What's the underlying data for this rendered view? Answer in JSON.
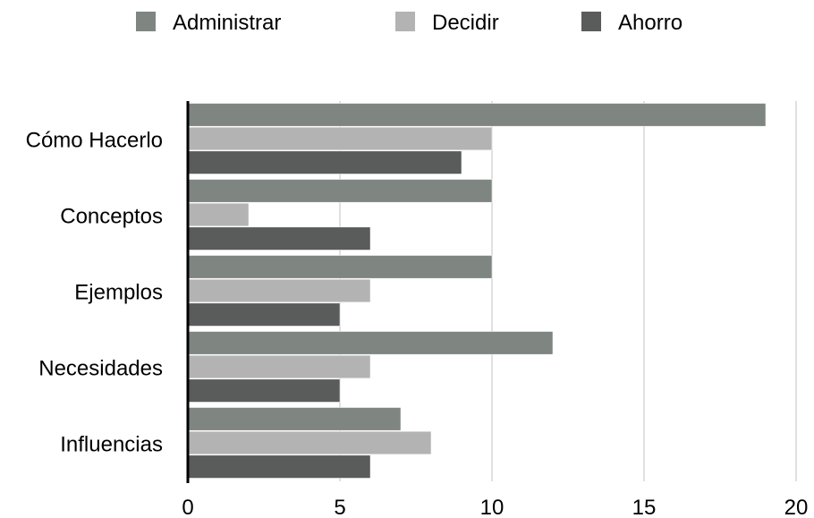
{
  "chart_data": {
    "type": "bar",
    "orientation": "horizontal",
    "categories": [
      "Cómo Hacerlo",
      "Conceptos",
      "Ejemplos",
      "Necesidades",
      "Influencias"
    ],
    "series": [
      {
        "name": "Administrar",
        "color": "#7f8682",
        "values": [
          19,
          10,
          10,
          12,
          7
        ]
      },
      {
        "name": "Decidir",
        "color": "#b3b3b3",
        "values": [
          10,
          2,
          6,
          6,
          8
        ]
      },
      {
        "name": "Ahorro",
        "color": "#595c5b",
        "values": [
          9,
          6,
          5,
          5,
          6
        ]
      }
    ],
    "xlim": [
      0,
      20
    ],
    "xticks": [
      0,
      5,
      10,
      15,
      20
    ],
    "grid": true,
    "legend_position": "top"
  }
}
